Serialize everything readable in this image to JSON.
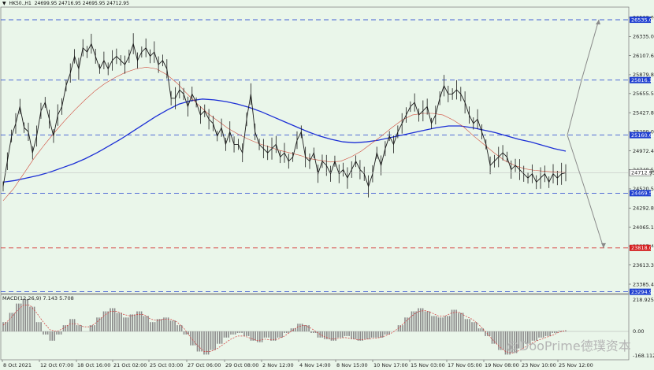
{
  "header": {
    "triangle": "▼",
    "symbol": "HK50.,H1",
    "ohlc": "24699.95 24716.95 24695.95 24712.95"
  },
  "macd_label": "MACD(12,26,9) 7.143 5.708",
  "watermark": "@DooPrime德璞资本",
  "chart_data": {
    "type": "line",
    "price_ticks": [
      "26563.60",
      "26335.00",
      "26107.60",
      "25879.80",
      "25655.55",
      "25427.80",
      "25200.05",
      "24972.45",
      "24748.50",
      "24520.50",
      "24292.80",
      "24065.10",
      "23837.40",
      "23613.35",
      "23385.45"
    ],
    "macd_ticks": [
      "218.925",
      "0.00",
      "-168.112"
    ],
    "dates": [
      "8 Oct 2021",
      "12 Oct 07:00",
      "18 Oct 16:00",
      "21 Oct 02:00",
      "25 Oct 03:00",
      "27 Oct 06:00",
      "29 Oct 08:00",
      "2 Nov 12:00",
      "4 Nov 14:00",
      "8 Nov 15:00",
      "10 Nov 17:00",
      "15 Nov 03:00",
      "17 Nov 05:00",
      "19 Nov 08:00",
      "23 Nov 10:00",
      "25 Nov 12:00"
    ],
    "levels": [
      {
        "value": 26535.0,
        "label": "26535.00",
        "color": "#1f3fd0"
      },
      {
        "value": 25816.19,
        "label": "25816.19",
        "color": "#1f3fd0"
      },
      {
        "value": 25160.63,
        "label": "25160.63",
        "color": "#1f3fd0"
      },
      {
        "value": 24469.58,
        "label": "24469.58",
        "color": "#1f3fd0"
      },
      {
        "value": 23818.0,
        "label": "23818.00",
        "color": "#d42020"
      },
      {
        "value": 23294.97,
        "label": "23294.97",
        "color": "#1f3fd0"
      }
    ],
    "current_price": "24712.95",
    "price": [
      24550,
      24850,
      25150,
      25300,
      25500,
      25250,
      25200,
      24950,
      25150,
      25450,
      25550,
      25350,
      25150,
      25400,
      25500,
      25750,
      25900,
      26100,
      25950,
      26200,
      26150,
      26250,
      26100,
      25950,
      26050,
      25950,
      26050,
      26100,
      26050,
      26000,
      26100,
      26250,
      26050,
      26150,
      26200,
      26100,
      26150,
      26000,
      26050,
      25950,
      25600,
      25600,
      25700,
      25650,
      25500,
      25650,
      25550,
      25400,
      25450,
      25350,
      25300,
      25150,
      25250,
      25050,
      25200,
      25050,
      25050,
      24950,
      25350,
      25650,
      25200,
      25050,
      25000,
      24950,
      25000,
      25050,
      24900,
      24950,
      24850,
      24900,
      25100,
      25200,
      24900,
      24850,
      24950,
      24700,
      24850,
      24800,
      24700,
      24850,
      24700,
      24750,
      24650,
      24750,
      24850,
      24750,
      24700,
      24550,
      24700,
      24950,
      24800,
      25000,
      25150,
      25050,
      25200,
      25300,
      25400,
      25500,
      25550,
      25400,
      25450,
      25500,
      25300,
      25400,
      25600,
      25750,
      25650,
      25650,
      25700,
      25650,
      25550,
      25400,
      25300,
      25350,
      25200,
      25050,
      24800,
      24850,
      24900,
      24950,
      24900,
      24750,
      24800,
      24750,
      24700,
      24650,
      24700,
      24600,
      24650,
      24700,
      24600,
      24700,
      24650,
      24700,
      24712.95
    ],
    "ma_fast": [
      24380,
      24520,
      24700,
      24880,
      25040,
      25190,
      25330,
      25460,
      25580,
      25690,
      25780,
      25850,
      25910,
      25950,
      25970,
      25950,
      25880,
      25780,
      25650,
      25530,
      25420,
      25330,
      25240,
      25170,
      25110,
      25060,
      25020,
      24980,
      24950,
      24920,
      24880,
      24860,
      24840,
      24850,
      24900,
      24970,
      25060,
      25150,
      25250,
      25340,
      25400,
      25420,
      25420,
      25400,
      25340,
      25260,
      25150,
      25050,
      24950,
      24860,
      24800,
      24760,
      24740,
      24730,
      24720,
      24715
    ],
    "ma_slow": [
      24600,
      24620,
      24650,
      24680,
      24720,
      24770,
      24820,
      24880,
      24950,
      25030,
      25110,
      25200,
      25290,
      25380,
      25460,
      25530,
      25570,
      25590,
      25580,
      25560,
      25530,
      25490,
      25440,
      25380,
      25320,
      25260,
      25200,
      25150,
      25110,
      25080,
      25070,
      25080,
      25100,
      25130,
      25160,
      25190,
      25220,
      25250,
      25270,
      25270,
      25250,
      25220,
      25190,
      25150,
      25110,
      25080,
      25040,
      25000,
      24970
    ],
    "macd_hist": [
      60,
      120,
      180,
      210,
      160,
      60,
      -20,
      -60,
      -20,
      40,
      80,
      40,
      0,
      40,
      90,
      130,
      150,
      120,
      90,
      110,
      130,
      100,
      60,
      80,
      90,
      70,
      40,
      -20,
      -90,
      -130,
      -150,
      -120,
      -80,
      -40,
      -20,
      -10,
      -30,
      -60,
      -70,
      -40,
      -60,
      -40,
      -10,
      20,
      50,
      40,
      -10,
      -40,
      -50,
      -60,
      -40,
      -30,
      -50,
      -60,
      -50,
      -40,
      -40,
      -20,
      0,
      40,
      90,
      130,
      150,
      130,
      100,
      90,
      100,
      140,
      120,
      80,
      60,
      20,
      -30,
      -80,
      -120,
      -150,
      -140,
      -110,
      -80,
      -60,
      -40,
      -30,
      -10,
      5,
      7
    ],
    "macd_signal": [
      40,
      80,
      130,
      170,
      170,
      120,
      60,
      10,
      0,
      20,
      50,
      50,
      30,
      30,
      60,
      100,
      130,
      130,
      110,
      100,
      110,
      110,
      80,
      70,
      80,
      80,
      60,
      20,
      -40,
      -90,
      -130,
      -130,
      -110,
      -80,
      -50,
      -30,
      -30,
      -45,
      -60,
      -50,
      -55,
      -50,
      -30,
      0,
      30,
      40,
      20,
      -10,
      -35,
      -50,
      -45,
      -40,
      -45,
      -55,
      -52,
      -46,
      -42,
      -30,
      -10,
      20,
      60,
      100,
      130,
      135,
      120,
      100,
      100,
      120,
      125,
      100,
      80,
      45,
      0,
      -50,
      -95,
      -130,
      -140,
      -125,
      -100,
      -75,
      -55,
      -40,
      -25,
      -5,
      5.7
    ]
  }
}
